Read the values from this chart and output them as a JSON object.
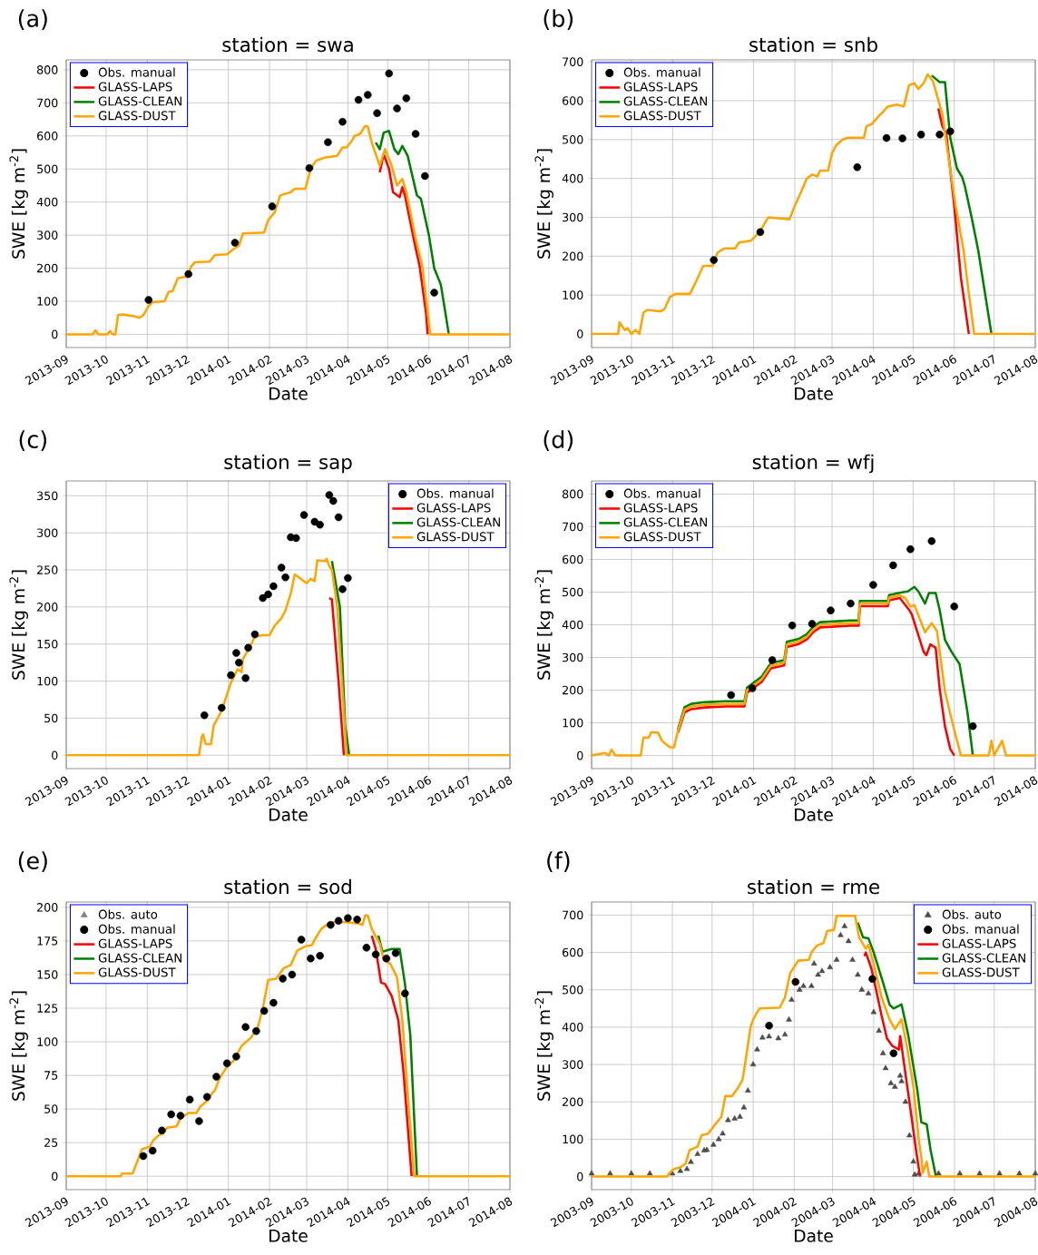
{
  "chart_data": [
    {
      "type": "line",
      "title": "station = swa",
      "xlabel": "Date",
      "ylabel": "SWE [kg m$^{-2}$]",
      "annotations": [
        "(a)"
      ],
      "grid": true,
      "legend": "top left",
      "xlim": [
        "2013-09-01",
        "2014-08-01"
      ],
      "xticks": [
        {
          "value": "2013-09-01",
          "label": "2013-09"
        },
        {
          "value": "2013-10-01",
          "label": "2013-10"
        },
        {
          "value": "2013-11-01",
          "label": "2013-11"
        },
        {
          "value": "2013-12-01",
          "label": "2013-12"
        },
        {
          "value": "2014-01-01",
          "label": "2014-01"
        },
        {
          "value": "2014-02-01",
          "label": "2014-02"
        },
        {
          "value": "2014-03-01",
          "label": "2014-03"
        },
        {
          "value": "2014-04-01",
          "label": "2014-04"
        },
        {
          "value": "2014-05-01",
          "label": "2014-05"
        },
        {
          "value": "2014-06-01",
          "label": "2014-06"
        },
        {
          "value": "2014-07-01",
          "label": "2014-07"
        },
        {
          "value": "2014-08-01",
          "label": "2014-08"
        }
      ],
      "ylim": [
        -40,
        830
      ],
      "yticks": [
        0,
        100,
        200,
        300,
        400,
        500,
        600,
        700,
        800
      ],
      "series": [
        {
          "name": "Obs. manual",
          "type": "scatter",
          "marker": "circle",
          "color": "#000000",
          "x": [
            "2013-11-02",
            "2013-12-02",
            "2014-01-06",
            "2014-02-03",
            "2014-03-03",
            "2014-03-17",
            "2014-03-28",
            "2014-04-09",
            "2014-04-16",
            "2014-04-23",
            "2014-05-02",
            "2014-05-08",
            "2014-05-15",
            "2014-05-22",
            "2014-05-29",
            "2014-06-05"
          ],
          "values": [
            104,
            182,
            277,
            387,
            503,
            581,
            643,
            709,
            724,
            669,
            789,
            683,
            714,
            606,
            479,
            126
          ]
        },
        {
          "name": "GLASS-LAPS",
          "color": "#ff0000",
          "x": [
            "2014-04-25",
            "2014-04-28",
            "2014-05-02",
            "2014-05-05",
            "2014-05-10",
            "2014-05-12",
            "2014-05-14",
            "2014-05-21",
            "2014-05-25",
            "2014-05-30",
            "2014-05-31"
          ],
          "values": [
            490,
            545,
            500,
            430,
            415,
            445,
            420,
            280,
            207,
            60,
            0
          ]
        },
        {
          "name": "GLASS-CLEAN",
          "color": "#008000",
          "x": [
            "2014-04-22",
            "2014-04-25",
            "2014-04-28",
            "2014-05-02",
            "2014-05-06",
            "2014-05-09",
            "2014-05-12",
            "2014-05-16",
            "2014-05-23",
            "2014-05-26",
            "2014-06-01",
            "2014-06-05",
            "2014-06-10",
            "2014-06-16"
          ],
          "values": [
            580,
            560,
            610,
            615,
            560,
            545,
            570,
            540,
            420,
            410,
            300,
            200,
            150,
            0
          ]
        },
        {
          "name": "GLASS-DUST",
          "color": "#ffa500",
          "x": [
            "2013-09-01",
            "2013-09-21",
            "2013-09-23",
            "2013-09-25",
            "2013-10-02",
            "2013-10-04",
            "2013-10-06",
            "2013-10-08",
            "2013-10-10",
            "2013-10-13",
            "2013-10-22",
            "2013-10-26",
            "2013-10-29",
            "2013-11-02",
            "2013-11-05",
            "2013-11-14",
            "2013-11-17",
            "2013-11-20",
            "2013-11-24",
            "2013-12-01",
            "2013-12-04",
            "2013-12-07",
            "2013-12-18",
            "2013-12-22",
            "2013-12-31",
            "2014-01-04",
            "2014-01-09",
            "2014-01-12",
            "2014-01-28",
            "2014-01-31",
            "2014-02-05",
            "2014-02-09",
            "2014-02-17",
            "2014-02-20",
            "2014-02-28",
            "2014-03-04",
            "2014-03-08",
            "2014-03-15",
            "2014-03-24",
            "2014-03-28",
            "2014-03-31",
            "2014-04-04",
            "2014-04-06",
            "2014-04-10",
            "2014-04-14",
            "2014-04-16",
            "2014-04-19",
            "2014-04-25",
            "2014-04-29",
            "2014-05-04",
            "2014-05-08",
            "2014-05-12",
            "2014-05-15",
            "2014-05-22",
            "2014-05-27",
            "2014-06-02",
            "2014-08-01"
          ],
          "values": [
            0,
            0,
            12,
            0,
            0,
            10,
            0,
            0,
            58,
            60,
            55,
            50,
            58,
            85,
            97,
            100,
            128,
            130,
            170,
            175,
            205,
            218,
            220,
            240,
            242,
            255,
            268,
            305,
            308,
            345,
            370,
            420,
            430,
            440,
            440,
            500,
            525,
            535,
            540,
            565,
            565,
            585,
            600,
            605,
            630,
            628,
            580,
            510,
            560,
            510,
            450,
            470,
            430,
            290,
            207,
            0,
            0
          ]
        }
      ]
    },
    {
      "type": "line",
      "title": "station = snb",
      "xlabel": "Date",
      "ylabel": "SWE [kg m$^{-2}$]",
      "annotations": [
        "(b)"
      ],
      "grid": true,
      "legend": "top left",
      "xlim": [
        "2013-09-01",
        "2014-08-01"
      ],
      "xticks": [
        {
          "value": "2013-09-01",
          "label": "2013-09"
        },
        {
          "value": "2013-10-01",
          "label": "2013-10"
        },
        {
          "value": "2013-11-01",
          "label": "2013-11"
        },
        {
          "value": "2013-12-01",
          "label": "2013-12"
        },
        {
          "value": "2014-01-01",
          "label": "2014-01"
        },
        {
          "value": "2014-02-01",
          "label": "2014-02"
        },
        {
          "value": "2014-03-01",
          "label": "2014-03"
        },
        {
          "value": "2014-04-01",
          "label": "2014-04"
        },
        {
          "value": "2014-05-01",
          "label": "2014-05"
        },
        {
          "value": "2014-06-01",
          "label": "2014-06"
        },
        {
          "value": "2014-07-01",
          "label": "2014-07"
        },
        {
          "value": "2014-08-01",
          "label": "2014-08"
        }
      ],
      "ylim": [
        -35,
        705
      ],
      "yticks": [
        0,
        100,
        200,
        300,
        400,
        500,
        600,
        700
      ],
      "series": [
        {
          "name": "Obs. manual",
          "type": "scatter",
          "marker": "circle",
          "color": "#000000",
          "x": [
            "2013-12-02",
            "2014-01-06",
            "2014-03-20",
            "2014-04-11",
            "2014-04-23",
            "2014-05-07",
            "2014-05-21",
            "2014-05-29"
          ],
          "values": [
            190,
            262,
            429,
            504,
            503,
            513,
            513,
            521
          ]
        },
        {
          "name": "GLASS-LAPS",
          "color": "#ff0000",
          "x": [
            "2014-05-20",
            "2014-05-23",
            "2014-05-26",
            "2014-06-01",
            "2014-06-06",
            "2014-06-12"
          ],
          "values": [
            580,
            535,
            515,
            330,
            145,
            0
          ]
        },
        {
          "name": "GLASS-CLEAN",
          "color": "#008000",
          "x": [
            "2014-05-15",
            "2014-05-21",
            "2014-05-25",
            "2014-05-29",
            "2014-06-03",
            "2014-06-07",
            "2014-06-09",
            "2014-06-14",
            "2014-06-19",
            "2014-06-29"
          ],
          "values": [
            665,
            648,
            648,
            504,
            426,
            403,
            380,
            301,
            216,
            0
          ]
        },
        {
          "name": "GLASS-DUST",
          "color": "#ffa500",
          "x": [
            "2013-09-01",
            "2013-09-21",
            "2013-09-22",
            "2013-09-26",
            "2013-09-28",
            "2013-10-01",
            "2013-10-04",
            "2013-10-07",
            "2013-10-10",
            "2013-10-13",
            "2013-10-23",
            "2013-10-26",
            "2013-10-30",
            "2013-11-03",
            "2013-11-14",
            "2013-11-18",
            "2013-11-24",
            "2013-12-01",
            "2013-12-05",
            "2013-12-10",
            "2013-12-18",
            "2013-12-21",
            "2013-12-30",
            "2014-01-02",
            "2014-01-06",
            "2014-01-12",
            "2014-01-28",
            "2014-02-01",
            "2014-02-05",
            "2014-02-10",
            "2014-02-14",
            "2014-02-18",
            "2014-02-20",
            "2014-02-26",
            "2014-03-01",
            "2014-03-04",
            "2014-03-09",
            "2014-03-13",
            "2014-03-25",
            "2014-03-27",
            "2014-03-31",
            "2014-04-05",
            "2014-04-08",
            "2014-04-12",
            "2014-04-19",
            "2014-04-24",
            "2014-04-28",
            "2014-05-02",
            "2014-05-05",
            "2014-05-09",
            "2014-05-12",
            "2014-05-16",
            "2014-05-23",
            "2014-05-27",
            "2014-06-02",
            "2014-06-08",
            "2014-06-11",
            "2014-06-16",
            "2014-08-01"
          ],
          "values": [
            0,
            0,
            30,
            10,
            15,
            0,
            10,
            0,
            55,
            62,
            58,
            65,
            95,
            103,
            103,
            130,
            175,
            175,
            210,
            220,
            220,
            235,
            240,
            250,
            265,
            300,
            295,
            330,
            360,
            400,
            410,
            405,
            420,
            420,
            465,
            485,
            500,
            505,
            505,
            535,
            540,
            560,
            570,
            585,
            590,
            585,
            640,
            645,
            630,
            645,
            668,
            650,
            566,
            470,
            330,
            216,
            130,
            0,
            0
          ]
        }
      ]
    },
    {
      "type": "line",
      "title": "station = sap",
      "xlabel": "Date",
      "ylabel": "SWE [kg m$^{-2}$]",
      "annotations": [
        "(c)"
      ],
      "grid": true,
      "legend": "top right",
      "xlim": [
        "2013-09-01",
        "2014-08-01"
      ],
      "xticks": [
        {
          "value": "2013-09-01",
          "label": "2013-09"
        },
        {
          "value": "2013-10-01",
          "label": "2013-10"
        },
        {
          "value": "2013-11-01",
          "label": "2013-11"
        },
        {
          "value": "2013-12-01",
          "label": "2013-12"
        },
        {
          "value": "2014-01-01",
          "label": "2014-01"
        },
        {
          "value": "2014-02-01",
          "label": "2014-02"
        },
        {
          "value": "2014-03-01",
          "label": "2014-03"
        },
        {
          "value": "2014-04-01",
          "label": "2014-04"
        },
        {
          "value": "2014-05-01",
          "label": "2014-05"
        },
        {
          "value": "2014-06-01",
          "label": "2014-06"
        },
        {
          "value": "2014-07-01",
          "label": "2014-07"
        },
        {
          "value": "2014-08-01",
          "label": "2014-08"
        }
      ],
      "ylim": [
        -18,
        370
      ],
      "yticks": [
        0,
        50,
        100,
        150,
        200,
        250,
        300,
        350
      ],
      "series": [
        {
          "name": "Obs. manual",
          "type": "scatter",
          "marker": "circle",
          "color": "#000000",
          "x": [
            "2013-12-14",
            "2013-12-27",
            "2014-01-03",
            "2014-01-07",
            "2014-01-09",
            "2014-01-14",
            "2014-01-16",
            "2014-01-21",
            "2014-01-27",
            "2014-01-31",
            "2014-02-04",
            "2014-02-10",
            "2014-02-13",
            "2014-02-17",
            "2014-02-21",
            "2014-02-27",
            "2014-03-07",
            "2014-03-11",
            "2014-03-18",
            "2014-03-21",
            "2014-03-25",
            "2014-03-28",
            "2014-04-01"
          ],
          "values": [
            54,
            64,
            108,
            138,
            125,
            104,
            145,
            163,
            212,
            217,
            228,
            253,
            240,
            294,
            293,
            324,
            315,
            311,
            351,
            343,
            321,
            224,
            239
          ]
        },
        {
          "name": "GLASS-LAPS",
          "color": "#ff0000",
          "x": [
            "2014-03-18",
            "2014-03-20",
            "2014-03-25",
            "2014-03-29"
          ],
          "values": [
            212,
            210,
            100,
            0
          ]
        },
        {
          "name": "GLASS-CLEAN",
          "color": "#008000",
          "x": [
            "2014-03-20",
            "2014-03-26",
            "2014-03-30",
            "2014-04-02"
          ],
          "values": [
            262,
            200,
            40,
            0
          ]
        },
        {
          "name": "GLASS-DUST",
          "color": "#ffa500",
          "x": [
            "2013-09-01",
            "2013-12-10",
            "2013-12-12",
            "2013-12-13",
            "2013-12-15",
            "2013-12-19",
            "2013-12-21",
            "2013-12-27",
            "2014-01-03",
            "2014-01-08",
            "2014-01-11",
            "2014-01-12",
            "2014-01-17",
            "2014-01-21",
            "2014-01-27",
            "2014-02-01",
            "2014-02-05",
            "2014-02-10",
            "2014-02-13",
            "2014-02-17",
            "2014-02-20",
            "2014-03-01",
            "2014-03-04",
            "2014-03-07",
            "2014-03-09",
            "2014-03-15",
            "2014-03-16",
            "2014-03-18",
            "2014-03-20",
            "2014-03-24",
            "2014-03-29",
            "2014-03-31",
            "2014-08-01"
          ],
          "values": [
            0,
            0,
            25,
            28,
            15,
            15,
            40,
            60,
            98,
            116,
            112,
            130,
            145,
            160,
            162,
            162,
            175,
            185,
            195,
            218,
            244,
            232,
            238,
            235,
            263,
            262,
            265,
            255,
            250,
            200,
            60,
            0,
            0
          ]
        }
      ]
    },
    {
      "type": "line",
      "title": "station = wfj",
      "xlabel": "Date",
      "ylabel": "SWE [kg m$^{-2}$]",
      "annotations": [
        "(d)"
      ],
      "grid": true,
      "legend": "top left",
      "xlim": [
        "2013-09-01",
        "2014-08-01"
      ],
      "xticks": [
        {
          "value": "2013-09-01",
          "label": "2013-09"
        },
        {
          "value": "2013-10-01",
          "label": "2013-10"
        },
        {
          "value": "2013-11-01",
          "label": "2013-11"
        },
        {
          "value": "2013-12-01",
          "label": "2013-12"
        },
        {
          "value": "2014-01-01",
          "label": "2014-01"
        },
        {
          "value": "2014-02-01",
          "label": "2014-02"
        },
        {
          "value": "2014-03-01",
          "label": "2014-03"
        },
        {
          "value": "2014-04-01",
          "label": "2014-04"
        },
        {
          "value": "2014-05-01",
          "label": "2014-05"
        },
        {
          "value": "2014-06-01",
          "label": "2014-06"
        },
        {
          "value": "2014-07-01",
          "label": "2014-07"
        },
        {
          "value": "2014-08-01",
          "label": "2014-08"
        }
      ],
      "ylim": [
        -40,
        840
      ],
      "yticks": [
        0,
        100,
        200,
        300,
        400,
        500,
        600,
        700,
        800
      ],
      "series": [
        {
          "name": "Obs. manual",
          "type": "scatter",
          "marker": "circle",
          "color": "#000000",
          "x": [
            "2013-12-15",
            "2013-12-31",
            "2014-01-15",
            "2014-01-30",
            "2014-02-14",
            "2014-02-28",
            "2014-03-15",
            "2014-04-01",
            "2014-04-16",
            "2014-04-29",
            "2014-05-15",
            "2014-06-01",
            "2014-06-15"
          ],
          "values": [
            185,
            206,
            292,
            398,
            403,
            444,
            465,
            522,
            582,
            631,
            656,
            456,
            90
          ]
        },
        {
          "name": "GLASS-LAPS",
          "color": "#ff0000",
          "x": [
            "2013-11-05",
            "2013-11-10",
            "2013-11-15",
            "2013-11-25",
            "2013-12-11",
            "2013-12-25",
            "2013-12-27",
            "2014-01-04",
            "2014-01-07",
            "2014-01-14",
            "2014-01-20",
            "2014-01-24",
            "2014-01-26",
            "2014-02-04",
            "2014-02-10",
            "2014-02-15",
            "2014-02-20",
            "2014-03-15",
            "2014-03-21",
            "2014-03-22",
            "2014-04-12",
            "2014-04-13",
            "2014-04-21",
            "2014-04-28",
            "2014-04-30",
            "2014-05-04",
            "2014-05-09",
            "2014-05-11",
            "2014-05-14",
            "2014-05-18",
            "2014-05-21",
            "2014-05-25",
            "2014-05-29",
            "2014-06-01"
          ],
          "values": [
            70,
            132,
            142,
            147,
            150,
            150,
            192,
            216,
            225,
            267,
            272,
            276,
            332,
            341,
            355,
            378,
            392,
            397,
            397,
            457,
            457,
            475,
            482,
            446,
            432,
            381,
            317,
            307,
            340,
            330,
            205,
            90,
            20,
            0
          ]
        },
        {
          "name": "GLASS-CLEAN",
          "color": "#008000",
          "x": [
            "2013-11-05",
            "2013-11-10",
            "2013-11-15",
            "2013-11-25",
            "2013-12-11",
            "2013-12-25",
            "2013-12-27",
            "2014-01-04",
            "2014-01-07",
            "2014-01-14",
            "2014-01-20",
            "2014-01-24",
            "2014-01-26",
            "2014-02-04",
            "2014-02-10",
            "2014-02-15",
            "2014-02-20",
            "2014-03-15",
            "2014-03-21",
            "2014-03-22",
            "2014-04-12",
            "2014-04-13",
            "2014-04-21",
            "2014-04-27",
            "2014-05-02",
            "2014-05-05",
            "2014-05-10",
            "2014-05-13",
            "2014-05-18",
            "2014-05-21",
            "2014-05-25",
            "2014-05-30",
            "2014-06-05",
            "2014-06-11",
            "2014-06-15"
          ],
          "values": [
            80,
            148,
            158,
            163,
            166,
            166,
            208,
            232,
            241,
            283,
            288,
            292,
            348,
            357,
            371,
            394,
            408,
            413,
            413,
            473,
            473,
            491,
            498,
            502,
            516,
            502,
            465,
            497,
            497,
            446,
            354,
            317,
            280,
            131,
            0
          ]
        },
        {
          "name": "GLASS-DUST",
          "color": "#ffa500",
          "x": [
            "2013-09-01",
            "2013-09-11",
            "2013-09-14",
            "2013-09-16",
            "2013-09-19",
            "2013-10-08",
            "2013-10-10",
            "2013-10-14",
            "2013-10-16",
            "2013-10-21",
            "2013-10-24",
            "2013-10-26",
            "2013-10-30",
            "2013-11-02",
            "2013-11-05",
            "2013-11-10",
            "2013-11-15",
            "2013-11-25",
            "2013-12-11",
            "2013-12-25",
            "2013-12-27",
            "2014-01-04",
            "2014-01-07",
            "2014-01-14",
            "2014-01-20",
            "2014-01-24",
            "2014-01-26",
            "2014-02-04",
            "2014-02-10",
            "2014-02-15",
            "2014-02-20",
            "2014-03-15",
            "2014-03-21",
            "2014-03-22",
            "2014-04-12",
            "2014-04-13",
            "2014-04-21",
            "2014-04-25",
            "2014-04-29",
            "2014-05-02",
            "2014-05-10",
            "2014-05-15",
            "2014-05-19",
            "2014-05-25",
            "2014-05-31",
            "2014-06-06",
            "2014-06-27",
            "2014-06-29",
            "2014-07-01",
            "2014-07-07",
            "2014-07-10",
            "2014-08-01"
          ],
          "values": [
            0,
            8,
            0,
            18,
            0,
            0,
            55,
            55,
            72,
            70,
            45,
            38,
            25,
            25,
            75,
            140,
            150,
            155,
            158,
            158,
            200,
            224,
            233,
            275,
            280,
            284,
            340,
            349,
            363,
            386,
            400,
            405,
            405,
            465,
            465,
            483,
            490,
            483,
            456,
            460,
            377,
            405,
            381,
            196,
            94,
            0,
            0,
            45,
            0,
            45,
            0,
            0
          ]
        }
      ]
    },
    {
      "type": "line",
      "title": "station = sod",
      "xlabel": "Date",
      "ylabel": "SWE [kg m$^{-2}$]",
      "annotations": [
        "(e)"
      ],
      "grid": true,
      "legend": "top left",
      "xlim": [
        "2013-09-01",
        "2014-08-01"
      ],
      "xticks": [
        {
          "value": "2013-09-01",
          "label": "2013-09"
        },
        {
          "value": "2013-10-01",
          "label": "2013-10"
        },
        {
          "value": "2013-11-01",
          "label": "2013-11"
        },
        {
          "value": "2013-12-01",
          "label": "2013-12"
        },
        {
          "value": "2014-01-01",
          "label": "2014-01"
        },
        {
          "value": "2014-02-01",
          "label": "2014-02"
        },
        {
          "value": "2014-03-01",
          "label": "2014-03"
        },
        {
          "value": "2014-04-01",
          "label": "2014-04"
        },
        {
          "value": "2014-05-01",
          "label": "2014-05"
        },
        {
          "value": "2014-06-01",
          "label": "2014-06"
        },
        {
          "value": "2014-07-01",
          "label": "2014-07"
        },
        {
          "value": "2014-08-01",
          "label": "2014-08"
        }
      ],
      "ylim": [
        -10,
        204
      ],
      "yticks": [
        0,
        25,
        50,
        75,
        100,
        125,
        150,
        175,
        200
      ],
      "series": [
        {
          "name": "Obs. auto",
          "type": "scatter",
          "marker": "triangle",
          "color": "#808080"
        },
        {
          "name": "Obs. manual",
          "type": "scatter",
          "marker": "circle",
          "color": "#000000",
          "x": [
            "2013-10-29",
            "2013-11-05",
            "2013-11-12",
            "2013-11-19",
            "2013-11-26",
            "2013-12-03",
            "2013-12-10",
            "2013-12-16",
            "2013-12-23",
            "2013-12-31",
            "2014-01-07",
            "2014-01-14",
            "2014-01-22",
            "2014-01-28",
            "2014-02-04",
            "2014-02-11",
            "2014-02-18",
            "2014-02-25",
            "2014-03-04",
            "2014-03-11",
            "2014-03-19",
            "2014-03-25",
            "2014-04-01",
            "2014-04-08",
            "2014-04-15",
            "2014-04-22",
            "2014-04-30",
            "2014-05-07",
            "2014-05-14"
          ],
          "values": [
            15,
            19,
            34,
            46,
            45,
            57,
            41,
            59,
            74,
            84,
            89,
            111,
            108,
            123,
            129,
            147,
            150,
            176,
            162,
            164,
            187,
            190,
            192,
            191,
            170,
            165,
            162,
            166,
            136
          ]
        },
        {
          "name": "GLASS-LAPS",
          "color": "#ff0000",
          "x": [
            "2014-04-19",
            "2014-04-22",
            "2014-04-26",
            "2014-04-29",
            "2014-05-04",
            "2014-05-09",
            "2014-05-13",
            "2014-05-19"
          ],
          "values": [
            179,
            169,
            144,
            143,
            134,
            116,
            76,
            0
          ]
        },
        {
          "name": "GLASS-CLEAN",
          "color": "#008000",
          "x": [
            "2014-04-24",
            "2014-04-27",
            "2014-05-04",
            "2014-05-10",
            "2014-05-14",
            "2014-05-18",
            "2014-05-23"
          ],
          "values": [
            179,
            167,
            169,
            169,
            143,
            105,
            0
          ]
        },
        {
          "name": "GLASS-DUST",
          "color": "#ffa500",
          "x": [
            "2013-09-01",
            "2013-10-12",
            "2013-10-13",
            "2013-10-21",
            "2013-10-26",
            "2013-10-28",
            "2013-11-03",
            "2013-11-05",
            "2013-11-09",
            "2013-11-13",
            "2013-11-16",
            "2013-11-23",
            "2013-11-26",
            "2013-12-02",
            "2013-12-08",
            "2013-12-11",
            "2013-12-16",
            "2013-12-20",
            "2013-12-22",
            "2013-12-25",
            "2013-12-30",
            "2014-01-05",
            "2014-01-11",
            "2014-01-18",
            "2014-01-23",
            "2014-01-27",
            "2014-01-31",
            "2014-02-06",
            "2014-02-12",
            "2014-02-17",
            "2014-02-22",
            "2014-02-28",
            "2014-03-05",
            "2014-03-07",
            "2014-03-12",
            "2014-03-16",
            "2014-03-21",
            "2014-03-31",
            "2014-04-09",
            "2014-04-12",
            "2014-04-14",
            "2014-04-16",
            "2014-04-19",
            "2014-04-25",
            "2014-04-28",
            "2014-05-03",
            "2014-05-08",
            "2014-05-12",
            "2014-05-17",
            "2014-05-21",
            "2014-08-01"
          ],
          "values": [
            0,
            0,
            2,
            2,
            15,
            20,
            22,
            26,
            30,
            32,
            36,
            37,
            43,
            47,
            47,
            52,
            56,
            62,
            64,
            72,
            80,
            86,
            97,
            103,
            110,
            125,
            146,
            147,
            155,
            157,
            168,
            171,
            172,
            176,
            184,
            187,
            189,
            189,
            188,
            187,
            194,
            194,
            184,
            173,
            161,
            158,
            148,
            116,
            49,
            0,
            0
          ]
        }
      ]
    },
    {
      "type": "line",
      "title": "station = rme",
      "xlabel": "Date",
      "ylabel": "SWE [kg m$^{-2}$]",
      "annotations": [
        "(f)"
      ],
      "grid": true,
      "legend": "top right",
      "xlim": [
        "2003-09-01",
        "2004-08-01"
      ],
      "xticks": [
        {
          "value": "2003-09-01",
          "label": "2003-09"
        },
        {
          "value": "2003-10-01",
          "label": "2003-10"
        },
        {
          "value": "2003-11-01",
          "label": "2003-11"
        },
        {
          "value": "2003-12-01",
          "label": "2003-12"
        },
        {
          "value": "2004-01-01",
          "label": "2004-01"
        },
        {
          "value": "2004-02-01",
          "label": "2004-02"
        },
        {
          "value": "2004-03-01",
          "label": "2004-03"
        },
        {
          "value": "2004-04-01",
          "label": "2004-04"
        },
        {
          "value": "2004-05-01",
          "label": "2004-05"
        },
        {
          "value": "2004-06-01",
          "label": "2004-06"
        },
        {
          "value": "2004-07-01",
          "label": "2004-07"
        },
        {
          "value": "2004-08-01",
          "label": "2004-08"
        }
      ],
      "ylim": [
        -35,
        735
      ],
      "yticks": [
        0,
        100,
        200,
        300,
        400,
        500,
        600,
        700
      ],
      "series": [
        {
          "name": "Obs. auto",
          "type": "scatter",
          "marker": "triangle",
          "color": "#4d4d4d",
          "x": [
            "2003-09-01",
            "2003-09-15",
            "2003-10-01",
            "2003-10-15",
            "2003-11-01",
            "2003-11-07",
            "2003-11-12",
            "2003-11-15",
            "2003-11-20",
            "2003-11-25",
            "2003-11-27",
            "2003-12-02",
            "2003-12-06",
            "2003-12-09",
            "2003-12-13",
            "2003-12-18",
            "2003-12-22",
            "2003-12-25",
            "2003-12-28",
            "2004-01-01",
            "2004-01-04",
            "2004-01-08",
            "2004-01-13",
            "2004-01-20",
            "2004-01-25",
            "2004-01-28",
            "2004-01-30",
            "2004-02-05",
            "2004-02-08",
            "2004-02-14",
            "2004-02-16",
            "2004-02-19",
            "2004-02-22",
            "2004-02-28",
            "2004-03-04",
            "2004-03-07",
            "2004-03-10",
            "2004-03-13",
            "2004-03-16",
            "2004-03-20",
            "2004-03-23",
            "2004-03-28",
            "2004-04-01",
            "2004-04-05",
            "2004-04-08",
            "2004-04-10",
            "2004-04-14",
            "2004-04-17",
            "2004-04-21",
            "2004-04-22",
            "2004-04-25",
            "2004-04-28",
            "2004-05-01",
            "2004-05-02",
            "2004-05-05",
            "2004-05-20",
            "2004-06-05",
            "2004-06-20",
            "2004-07-05",
            "2004-07-20",
            "2004-08-01"
          ],
          "values": [
            8,
            8,
            8,
            8,
            8,
            15,
            20,
            39,
            60,
            70,
            71,
            85,
            100,
            115,
            151,
            155,
            160,
            185,
            230,
            300,
            340,
            372,
            375,
            370,
            380,
            420,
            473,
            500,
            510,
            510,
            570,
            540,
            550,
            560,
            580,
            646,
            670,
            630,
            580,
            540,
            500,
            490,
            440,
            390,
            330,
            290,
            250,
            240,
            270,
            255,
            200,
            110,
            40,
            5,
            8,
            8,
            8,
            8,
            8,
            8,
            8
          ]
        },
        {
          "name": "Obs. manual",
          "type": "scatter",
          "marker": "circle",
          "color": "#000000",
          "x": [
            "2004-01-13",
            "2004-02-02",
            "2004-03-31",
            "2004-04-16"
          ],
          "values": [
            404,
            521,
            529,
            330
          ]
        },
        {
          "name": "GLASS-LAPS",
          "color": "#ff0000",
          "x": [
            "2004-03-25",
            "2004-03-26",
            "2004-03-30",
            "2004-04-01",
            "2004-04-07",
            "2004-04-11",
            "2004-04-15",
            "2004-04-20",
            "2004-04-21",
            "2004-04-24",
            "2004-04-28",
            "2004-05-03",
            "2004-05-06"
          ],
          "values": [
            590,
            600,
            560,
            530,
            430,
            370,
            350,
            340,
            376,
            300,
            200,
            70,
            0
          ]
        },
        {
          "name": "GLASS-CLEAN",
          "color": "#008000",
          "x": [
            "2004-03-20",
            "2004-03-24",
            "2004-03-28",
            "2004-04-01",
            "2004-04-08",
            "2004-04-13",
            "2004-04-16",
            "2004-04-22",
            "2004-04-27",
            "2004-05-04",
            "2004-05-07",
            "2004-05-11",
            "2004-05-14",
            "2004-05-18"
          ],
          "values": [
            680,
            640,
            638,
            600,
            520,
            460,
            450,
            461,
            380,
            230,
            145,
            140,
            70,
            0
          ]
        },
        {
          "name": "GLASS-DUST",
          "color": "#ffa500",
          "x": [
            "2003-09-01",
            "2003-10-28",
            "2003-10-30",
            "2003-11-02",
            "2003-11-07",
            "2003-11-11",
            "2003-11-14",
            "2003-11-20",
            "2003-11-23",
            "2003-11-28",
            "2003-12-04",
            "2003-12-08",
            "2003-12-11",
            "2003-12-16",
            "2003-12-21",
            "2003-12-24",
            "2003-12-26",
            "2003-12-30",
            "2004-01-01",
            "2004-01-04",
            "2004-01-06",
            "2004-01-21",
            "2004-01-25",
            "2004-01-29",
            "2004-02-04",
            "2004-02-12",
            "2004-02-14",
            "2004-02-18",
            "2004-02-23",
            "2004-02-26",
            "2004-03-02",
            "2004-03-04",
            "2004-03-18",
            "2004-03-21",
            "2004-03-26",
            "2004-03-28",
            "2004-04-01",
            "2004-04-07",
            "2004-04-13",
            "2004-04-17",
            "2004-04-22",
            "2004-04-26",
            "2004-05-01",
            "2004-05-05",
            "2004-05-07",
            "2004-05-08",
            "2004-05-11",
            "2004-05-13",
            "2004-08-01"
          ],
          "values": [
            0,
            0,
            10,
            20,
            25,
            35,
            71,
            80,
            110,
            115,
            143,
            160,
            216,
            215,
            240,
            260,
            304,
            400,
            420,
            440,
            450,
            452,
            480,
            545,
            578,
            580,
            600,
            618,
            625,
            658,
            660,
            698,
            698,
            640,
            610,
            620,
            570,
            480,
            420,
            395,
            421,
            350,
            240,
            100,
            50,
            10,
            40,
            0,
            0
          ]
        }
      ]
    }
  ]
}
